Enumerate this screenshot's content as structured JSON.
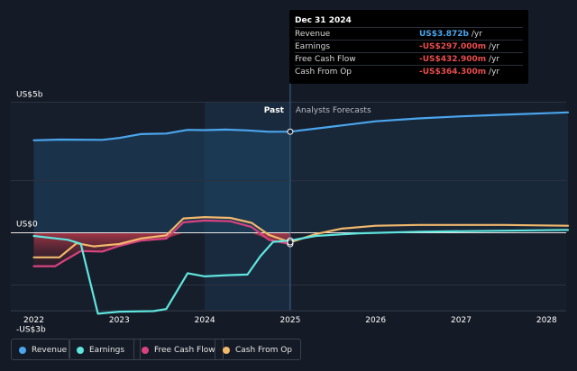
{
  "tooltip": {
    "date": "Dec 31 2024",
    "rows": [
      {
        "label": "Revenue",
        "value": "US$3.872b",
        "unit": " /yr",
        "color": "#4aa6ee"
      },
      {
        "label": "Earnings",
        "value": "-US$297.000m",
        "unit": " /yr",
        "color": "#e84d4d"
      },
      {
        "label": "Free Cash Flow",
        "value": "-US$432.900m",
        "unit": " /yr",
        "color": "#e84d4d"
      },
      {
        "label": "Cash From Op",
        "value": "-US$364.300m",
        "unit": " /yr",
        "color": "#e84d4d"
      }
    ]
  },
  "chart_data": {
    "type": "line",
    "x_unit": "year",
    "ylim": [
      -3.0,
      5.0
    ],
    "y_tick_labels": [
      {
        "y": 5,
        "label": "US$5b"
      },
      {
        "y": 0,
        "label": "US$0"
      },
      {
        "y": -3,
        "label": "-US$3b"
      }
    ],
    "x_ticks": [
      "2022",
      "2023",
      "2024",
      "2025",
      "2026",
      "2027",
      "2028"
    ],
    "divider_x": 2025.0,
    "past_label": "Past",
    "forecast_label": "Analysts Forecasts",
    "series": [
      {
        "name": "Revenue",
        "color": "#4aa6ee",
        "points": [
          [
            2022.0,
            3.54
          ],
          [
            2022.3,
            3.57
          ],
          [
            2022.8,
            3.56
          ],
          [
            2023.0,
            3.63
          ],
          [
            2023.25,
            3.78
          ],
          [
            2023.55,
            3.8
          ],
          [
            2023.8,
            3.94
          ],
          [
            2024.0,
            3.93
          ],
          [
            2024.25,
            3.95
          ],
          [
            2024.5,
            3.92
          ],
          [
            2024.75,
            3.87
          ],
          [
            2025.0,
            3.872
          ],
          [
            2025.5,
            4.07
          ],
          [
            2026.0,
            4.27
          ],
          [
            2026.5,
            4.38
          ],
          [
            2027.0,
            4.46
          ],
          [
            2027.5,
            4.52
          ],
          [
            2028.0,
            4.58
          ],
          [
            2028.25,
            4.61
          ]
        ]
      },
      {
        "name": "Earnings",
        "color": "#5fe5de",
        "points": [
          [
            2022.0,
            -0.12
          ],
          [
            2022.4,
            -0.27
          ],
          [
            2022.55,
            -0.42
          ],
          [
            2022.75,
            -3.1
          ],
          [
            2023.0,
            -3.02
          ],
          [
            2023.4,
            -3.0
          ],
          [
            2023.55,
            -2.92
          ],
          [
            2023.8,
            -1.55
          ],
          [
            2024.0,
            -1.67
          ],
          [
            2024.3,
            -1.62
          ],
          [
            2024.5,
            -1.6
          ],
          [
            2024.65,
            -0.9
          ],
          [
            2024.8,
            -0.35
          ],
          [
            2025.0,
            -0.297
          ],
          [
            2025.3,
            -0.12
          ],
          [
            2025.8,
            -0.02
          ],
          [
            2026.5,
            0.04
          ],
          [
            2027.5,
            0.08
          ],
          [
            2028.25,
            0.11
          ]
        ]
      },
      {
        "name": "Free Cash Flow",
        "color": "#d8437f",
        "points": [
          [
            2022.0,
            -1.28
          ],
          [
            2022.25,
            -1.28
          ],
          [
            2022.35,
            -1.08
          ],
          [
            2022.55,
            -0.7
          ],
          [
            2022.8,
            -0.72
          ],
          [
            2023.0,
            -0.5
          ],
          [
            2023.25,
            -0.3
          ],
          [
            2023.55,
            -0.22
          ],
          [
            2023.75,
            0.4
          ],
          [
            2024.0,
            0.47
          ],
          [
            2024.3,
            0.44
          ],
          [
            2024.55,
            0.22
          ],
          [
            2024.75,
            -0.27
          ],
          [
            2025.0,
            -0.433
          ]
        ]
      },
      {
        "name": "Cash From Op",
        "color": "#f1b86b",
        "points": [
          [
            2022.0,
            -0.94
          ],
          [
            2022.3,
            -0.94
          ],
          [
            2022.5,
            -0.4
          ],
          [
            2022.7,
            -0.52
          ],
          [
            2023.0,
            -0.43
          ],
          [
            2023.25,
            -0.22
          ],
          [
            2023.55,
            -0.1
          ],
          [
            2023.75,
            0.55
          ],
          [
            2024.0,
            0.6
          ],
          [
            2024.3,
            0.57
          ],
          [
            2024.55,
            0.38
          ],
          [
            2024.75,
            -0.08
          ],
          [
            2025.0,
            -0.364
          ],
          [
            2025.3,
            -0.05
          ],
          [
            2025.6,
            0.16
          ],
          [
            2026.0,
            0.27
          ],
          [
            2026.5,
            0.3
          ],
          [
            2027.5,
            0.3
          ],
          [
            2028.25,
            0.27
          ]
        ]
      }
    ]
  },
  "legend": [
    {
      "label": "Revenue",
      "color": "#4aa6ee"
    },
    {
      "label": "Earnings",
      "color": "#5fe5de"
    },
    {
      "label": "Free Cash Flow",
      "color": "#d8437f"
    },
    {
      "label": "Cash From Op",
      "color": "#f1b86b"
    }
  ]
}
